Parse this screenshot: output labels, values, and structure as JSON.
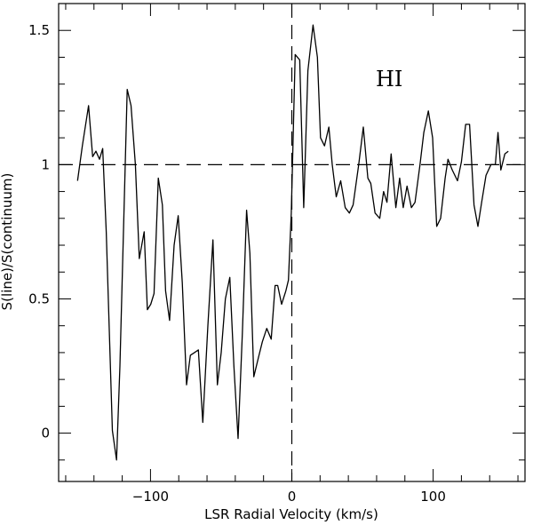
{
  "chart_data": {
    "type": "line",
    "xlabel": "LSR Radial Velocity (km/s)",
    "ylabel": "S(line)/S(continuum)",
    "xlim": [
      -165,
      165
    ],
    "ylim": [
      -0.18,
      1.6
    ],
    "xticks": [
      -100,
      0,
      100
    ],
    "xtick_labels": [
      "−100",
      "0",
      "100"
    ],
    "yticks": [
      0,
      0.5,
      1,
      1.5
    ],
    "ytick_labels": [
      "0",
      "0.5",
      "1",
      "1.5"
    ],
    "annotation": "HI",
    "reference_lines": {
      "horizontal_y": 1,
      "vertical_x": 0,
      "style": "dashed"
    },
    "grid": false,
    "series": [
      {
        "x": [
          -151.6,
          -148.2,
          -143.8,
          -140.9,
          -138.6,
          -136.1,
          -133.8,
          -131.3,
          -127.0,
          -124.0,
          -121.6,
          -116.5,
          -113.8,
          -110.7,
          -107.9,
          -104.5,
          -102.2,
          -99.8,
          -97.5,
          -94.5,
          -91.6,
          -89.3,
          -86.5,
          -83.3,
          -80.4,
          -77.5,
          -74.5,
          -71.8,
          -68.9,
          -66.1,
          -63.0,
          -59.4,
          -55.8,
          -52.7,
          -50.0,
          -47.0,
          -43.9,
          -41.0,
          -38.0,
          -35.0,
          -32.0,
          -29.7,
          -26.9,
          -23.7,
          -20.9,
          -17.7,
          -14.6,
          -11.8,
          -10.0,
          -7.2,
          -4.2,
          -2.4,
          -0.4,
          2.4,
          5.6,
          8.4,
          11.4,
          15.0,
          18.1,
          20.3,
          23.1,
          26.2,
          28.6,
          31.4,
          34.6,
          37.8,
          40.7,
          43.4,
          47.3,
          50.6,
          53.8,
          55.9,
          58.9,
          62.2,
          64.9,
          67.3,
          70.3,
          73.6,
          76.3,
          78.8,
          81.5,
          84.6,
          87.2,
          90.7,
          93.4,
          96.6,
          99.6,
          102.5,
          105.3,
          108.5,
          110.5,
          113.5,
          117.2,
          120.0,
          123.0,
          125.8,
          128.9,
          131.7,
          134.3,
          137.4,
          140.9,
          144.0,
          145.9,
          147.9,
          150.7,
          153.2
        ],
        "y": [
          0.94,
          1.07,
          1.22,
          1.03,
          1.05,
          1.02,
          1.06,
          0.75,
          0.01,
          -0.1,
          0.25,
          1.28,
          1.22,
          1.0,
          0.65,
          0.75,
          0.46,
          0.48,
          0.52,
          0.95,
          0.85,
          0.53,
          0.42,
          0.7,
          0.81,
          0.56,
          0.18,
          0.29,
          0.3,
          0.31,
          0.04,
          0.4,
          0.72,
          0.18,
          0.3,
          0.5,
          0.58,
          0.25,
          -0.02,
          0.37,
          0.83,
          0.67,
          0.21,
          0.28,
          0.34,
          0.39,
          0.35,
          0.55,
          0.55,
          0.48,
          0.53,
          0.57,
          0.82,
          1.41,
          1.39,
          0.84,
          1.35,
          1.52,
          1.4,
          1.1,
          1.07,
          1.14,
          1.0,
          0.88,
          0.94,
          0.84,
          0.82,
          0.85,
          1.0,
          1.14,
          0.95,
          0.93,
          0.82,
          0.8,
          0.9,
          0.86,
          1.04,
          0.84,
          0.95,
          0.84,
          0.92,
          0.84,
          0.86,
          1.0,
          1.12,
          1.2,
          1.1,
          0.77,
          0.8,
          0.95,
          1.02,
          0.98,
          0.94,
          1.01,
          1.15,
          1.15,
          0.85,
          0.77,
          0.86,
          0.96,
          1.0,
          1.0,
          1.12,
          0.98,
          1.04,
          1.05
        ]
      }
    ]
  }
}
